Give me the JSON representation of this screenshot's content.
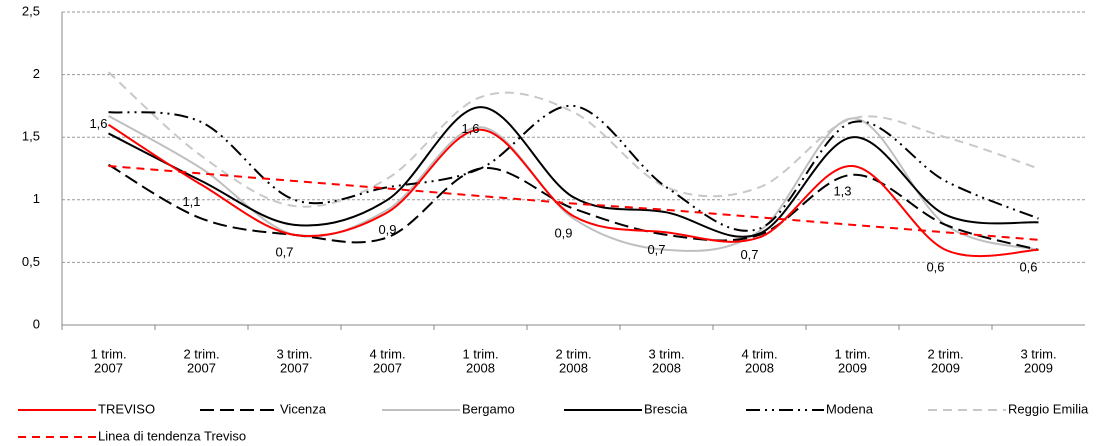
{
  "chart_data": {
    "type": "line",
    "categories": [
      [
        "1 trim.",
        "2007"
      ],
      [
        "2 trim.",
        "2007"
      ],
      [
        "3 trim.",
        "2007"
      ],
      [
        "4 trim.",
        "2007"
      ],
      [
        "1 trim.",
        "2008"
      ],
      [
        "2 trim.",
        "2008"
      ],
      [
        "3 trim.",
        "2008"
      ],
      [
        "4 trim.",
        "2008"
      ],
      [
        "1 trim.",
        "2009"
      ],
      [
        "2 trim.",
        "2009"
      ],
      [
        "3 trim.",
        "2009"
      ]
    ],
    "ylim": [
      0,
      2.5
    ],
    "yticks": [
      0,
      {
        "value": 0.5,
        "label": "0,5"
      },
      1,
      {
        "value": 1.5,
        "label": "1,5"
      },
      2,
      {
        "value": 2.5,
        "label": "2,5"
      }
    ],
    "grid": true,
    "series": [
      {
        "name": "TREVISO",
        "color": "#ff0000",
        "dash": "solid",
        "values": [
          1.6,
          1.12,
          0.72,
          0.9,
          1.56,
          0.87,
          0.74,
          0.7,
          1.27,
          0.6,
          0.6
        ],
        "value_labels": [
          "1,6",
          "1,1",
          "0,7",
          "0,9",
          "1,6",
          "0,9",
          "0,7",
          "0,7",
          "1,3",
          "0,6",
          "0,6"
        ]
      },
      {
        "name": "Vicenza",
        "color": "#000000",
        "dash": "long-dash",
        "values": [
          1.28,
          0.85,
          0.72,
          0.7,
          1.25,
          0.93,
          0.72,
          0.72,
          1.2,
          0.8,
          0.6
        ]
      },
      {
        "name": "Bergamo",
        "color": "#bfbfbf",
        "dash": "solid",
        "values": [
          1.67,
          1.25,
          0.72,
          0.92,
          1.58,
          0.85,
          0.6,
          0.75,
          1.65,
          0.8,
          0.6
        ]
      },
      {
        "name": "Brescia",
        "color": "#000000",
        "dash": "solid",
        "values": [
          1.53,
          1.15,
          0.8,
          1.0,
          1.74,
          1.02,
          0.9,
          0.73,
          1.5,
          0.88,
          0.82
        ]
      },
      {
        "name": "Modena",
        "color": "#000000",
        "dash": "dash-dot-dot",
        "values": [
          1.7,
          1.62,
          1.0,
          1.1,
          1.25,
          1.75,
          1.1,
          0.77,
          1.62,
          1.15,
          0.85
        ]
      },
      {
        "name": "Reggio Emilia",
        "color": "#c8c8c8",
        "dash": "dash",
        "values": [
          2.02,
          1.35,
          0.95,
          1.17,
          1.82,
          1.7,
          1.1,
          1.1,
          1.65,
          1.5,
          1.25
        ]
      },
      {
        "name": "Linea di tendenza Treviso",
        "color": "#ff0000",
        "dash": "trend",
        "values": [
          1.27,
          1.21,
          1.15,
          1.09,
          1.03,
          0.97,
          0.92,
          0.86,
          0.8,
          0.74,
          0.68
        ]
      }
    ]
  }
}
